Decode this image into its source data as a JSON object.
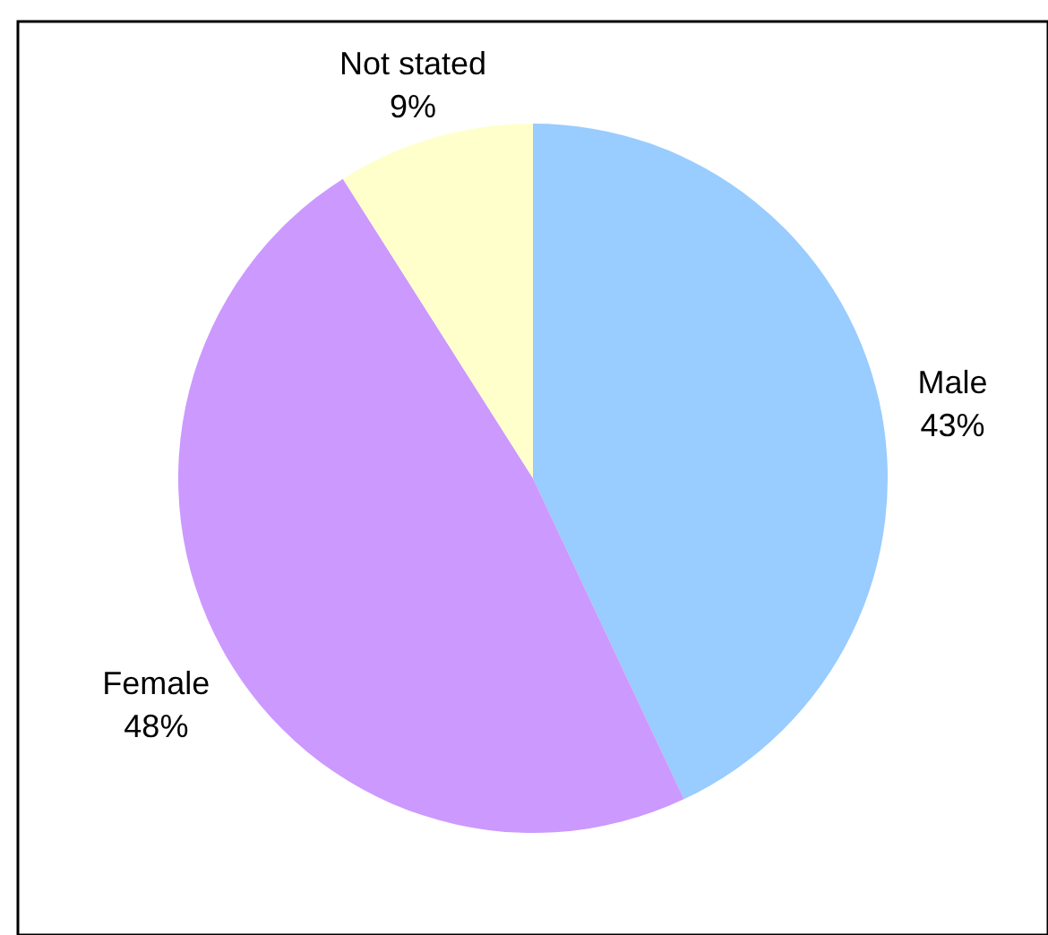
{
  "chart_data": {
    "type": "pie",
    "categories": [
      "Male",
      "Female",
      "Not stated"
    ],
    "values": [
      43,
      48,
      9
    ],
    "colors": [
      "#99ccff",
      "#cc99ff",
      "#ffffcc"
    ],
    "value_labels": [
      "43%",
      "48%",
      "9%"
    ]
  }
}
